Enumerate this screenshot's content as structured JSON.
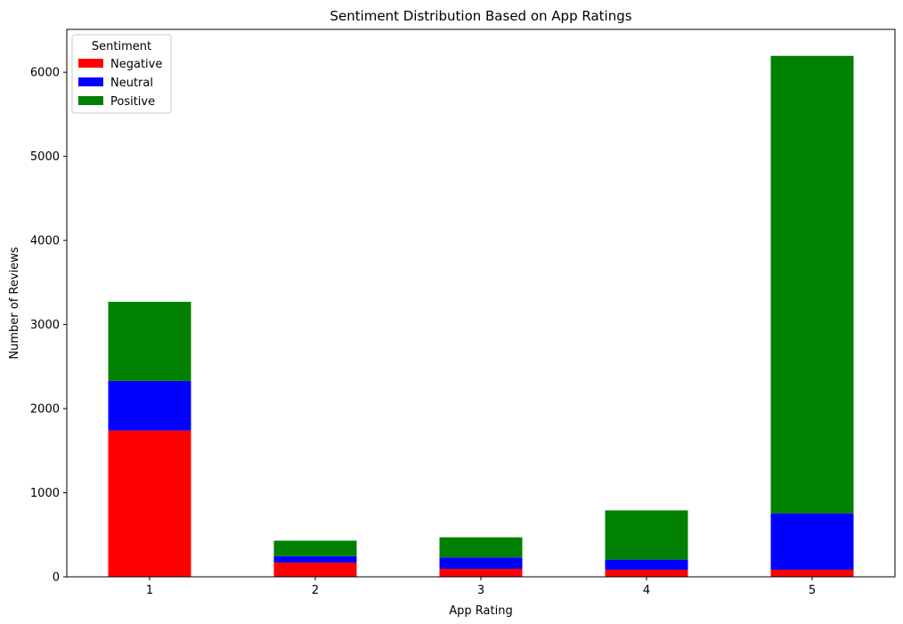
{
  "chart_data": {
    "type": "bar",
    "stacked": true,
    "title": "Sentiment Distribution Based on App Ratings",
    "xlabel": "App Rating",
    "ylabel": "Number of Reviews",
    "categories": [
      "1",
      "2",
      "3",
      "4",
      "5"
    ],
    "ylim": [
      0,
      6510
    ],
    "yticks": [
      0,
      1000,
      2000,
      3000,
      4000,
      5000,
      6000
    ],
    "legend": {
      "title": "Sentiment",
      "placement": "top-left"
    },
    "series": [
      {
        "name": "Negative",
        "color": "#ff0000",
        "values": [
          1740,
          170,
          95,
          85,
          85
        ]
      },
      {
        "name": "Neutral",
        "color": "#0000ff",
        "values": [
          590,
          75,
          135,
          120,
          670
        ]
      },
      {
        "name": "Positive",
        "color": "#008000",
        "values": [
          940,
          185,
          240,
          585,
          5440
        ]
      }
    ],
    "grid": false
  }
}
